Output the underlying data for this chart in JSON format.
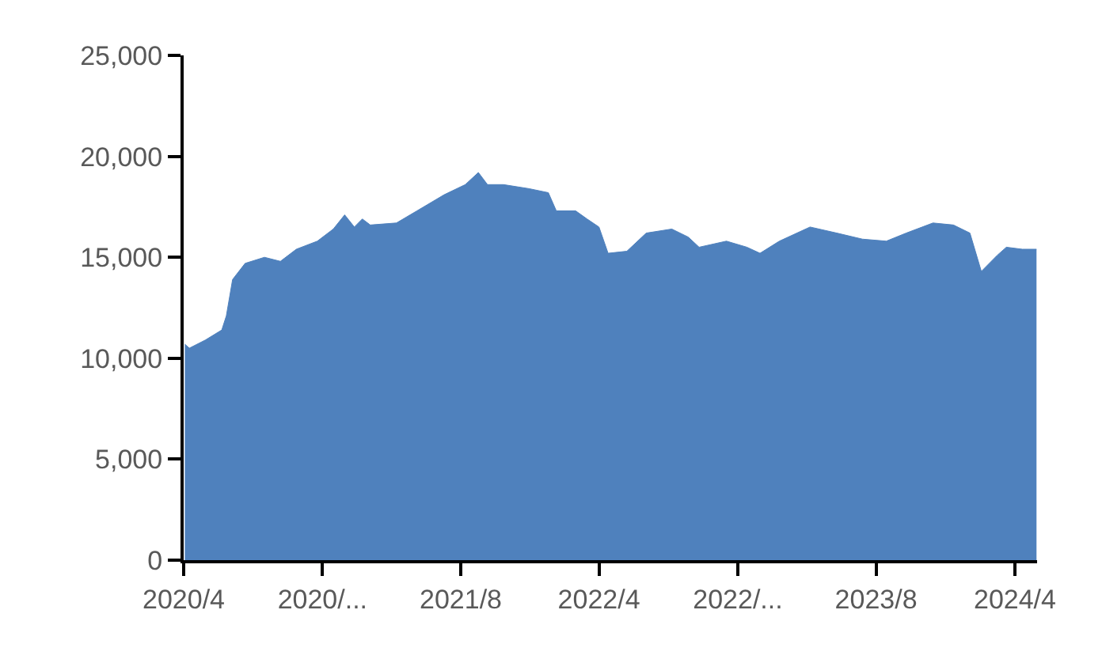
{
  "chart_data": {
    "type": "area",
    "color": "#4f81bd",
    "grid": false,
    "legend": false,
    "x": [
      "2020-04-03",
      "2020-04-11",
      "2020-05-09",
      "2020-06-07",
      "2020-06-15",
      "2020-06-26",
      "2020-07-18",
      "2020-08-21",
      "2020-09-18",
      "2020-10-16",
      "2020-11-22",
      "2020-12-20",
      "2021-01-09",
      "2021-01-26",
      "2021-02-09",
      "2021-02-23",
      "2021-04-10",
      "2021-05-16",
      "2021-07-03",
      "2021-08-09",
      "2021-09-01",
      "2021-09-17",
      "2021-10-15",
      "2021-11-29",
      "2022-01-02",
      "2022-01-16",
      "2022-02-19",
      "2022-03-11",
      "2022-04-01",
      "2022-04-17",
      "2022-05-20",
      "2022-06-23",
      "2022-08-07",
      "2022-09-05",
      "2022-09-24",
      "2022-11-11",
      "2022-12-17",
      "2023-01-09",
      "2023-02-12",
      "2023-04-07",
      "2023-05-24",
      "2023-07-08",
      "2023-08-19",
      "2023-09-23",
      "2023-11-09",
      "2023-12-15",
      "2024-01-13",
      "2024-02-02",
      "2024-03-01",
      "2024-03-17",
      "2024-04-14",
      "2024-05-09"
    ],
    "values": [
      10700,
      10500,
      10900,
      11400,
      12100,
      13900,
      14700,
      15000,
      14800,
      15400,
      15800,
      16400,
      17100,
      16500,
      16900,
      16600,
      16700,
      17300,
      18100,
      18600,
      19200,
      18600,
      18600,
      18400,
      18200,
      17300,
      17300,
      16900,
      16500,
      15200,
      15300,
      16200,
      16400,
      16000,
      15500,
      15800,
      15500,
      15200,
      15800,
      16500,
      16200,
      15900,
      15800,
      16200,
      16700,
      16600,
      16200,
      14300,
      15100,
      15500,
      15400,
      15400
    ],
    "xlim": [
      "2020-04-01",
      "2024-05-10"
    ],
    "xticks": [
      {
        "value": "2020-04",
        "label": "2020/4"
      },
      {
        "value": "2020-12",
        "label": "2020/..."
      },
      {
        "value": "2021-08",
        "label": "2021/8"
      },
      {
        "value": "2022-04",
        "label": "2022/4"
      },
      {
        "value": "2022-12",
        "label": "2022/..."
      },
      {
        "value": "2023-08",
        "label": "2023/8"
      },
      {
        "value": "2024-04",
        "label": "2024/4"
      }
    ],
    "ylim": [
      0,
      25000
    ],
    "yticks": [
      {
        "value": 0,
        "label": "0"
      },
      {
        "value": 5000,
        "label": "5,000"
      },
      {
        "value": 10000,
        "label": "10,000"
      },
      {
        "value": 15000,
        "label": "15,000"
      },
      {
        "value": 20000,
        "label": "20,000"
      },
      {
        "value": 25000,
        "label": "25,000"
      }
    ]
  }
}
